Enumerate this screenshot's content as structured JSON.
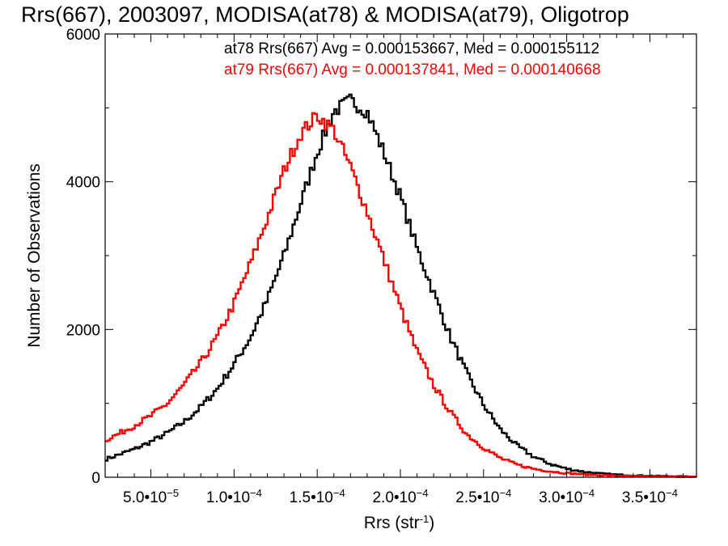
{
  "chart_data": {
    "type": "line",
    "title": "Rrs(667), 2003097, MODISA(at78) & MODISA(at79), Oligotrop",
    "xlabel": "Rrs (str",
    "xlabel_sup": "-1",
    "xlabel_close": ")",
    "ylabel": "Number of Observations",
    "xlim": [
      2.25e-05,
      0.000378
    ],
    "ylim": [
      0,
      6000
    ],
    "x_ticks": [
      {
        "value": 5e-05,
        "mantissa": "5.0",
        "exp": "-5"
      },
      {
        "value": 0.0001,
        "mantissa": "1.0",
        "exp": "-4"
      },
      {
        "value": 0.00015,
        "mantissa": "1.5",
        "exp": "-4"
      },
      {
        "value": 0.0002,
        "mantissa": "2.0",
        "exp": "-4"
      },
      {
        "value": 0.00025,
        "mantissa": "2.5",
        "exp": "-4"
      },
      {
        "value": 0.0003,
        "mantissa": "3.0",
        "exp": "-4"
      },
      {
        "value": 0.00035,
        "mantissa": "3.5",
        "exp": "-4"
      }
    ],
    "y_ticks": [
      {
        "value": 0,
        "label": "0"
      },
      {
        "value": 2000,
        "label": "2000"
      },
      {
        "value": 4000,
        "label": "4000"
      },
      {
        "value": 6000,
        "label": "6000"
      }
    ],
    "x": [
      2.25e-05,
      3e-05,
      4e-05,
      5e-05,
      6e-05,
      7e-05,
      8e-05,
      9e-05,
      0.0001,
      0.00011,
      0.00012,
      0.00013,
      0.00014,
      0.00015,
      0.00016,
      0.00017,
      0.00018,
      0.00019,
      0.0002,
      0.00021,
      0.00022,
      0.00023,
      0.00024,
      0.00025,
      0.00026,
      0.00027,
      0.00028,
      0.00029,
      0.0003,
      0.00031,
      0.00032,
      0.00033,
      0.00034,
      0.00035,
      0.00036,
      0.00037,
      0.000378
    ],
    "series": [
      {
        "name": "at78",
        "color": "#000000",
        "values": [
          240,
          300,
          380,
          480,
          600,
          750,
          950,
          1200,
          1530,
          1900,
          2400,
          3000,
          3700,
          4400,
          4950,
          5100,
          4950,
          4400,
          3800,
          3100,
          2500,
          1900,
          1400,
          980,
          650,
          430,
          280,
          180,
          115,
          75,
          50,
          35,
          25,
          20,
          15,
          10,
          8
        ]
      },
      {
        "name": "at79",
        "color": "#ff0000",
        "values": [
          500,
          580,
          700,
          830,
          1000,
          1250,
          1550,
          1900,
          2350,
          2900,
          3500,
          4150,
          4650,
          4900,
          4700,
          4200,
          3600,
          2950,
          2300,
          1700,
          1250,
          880,
          580,
          400,
          260,
          170,
          115,
          80,
          55,
          38,
          28,
          20,
          15,
          12,
          10,
          8,
          6
        ]
      }
    ],
    "legend": {
      "placement": "top-right",
      "entries": [
        {
          "text": "at78 Rrs(667) Avg = 0.000153667, Med = 0.000155112",
          "color": "#000000"
        },
        {
          "text": "at79 Rrs(667) Avg = 0.000137841, Med = 0.000140668",
          "color": "#ff0000"
        }
      ]
    },
    "grid": false
  }
}
